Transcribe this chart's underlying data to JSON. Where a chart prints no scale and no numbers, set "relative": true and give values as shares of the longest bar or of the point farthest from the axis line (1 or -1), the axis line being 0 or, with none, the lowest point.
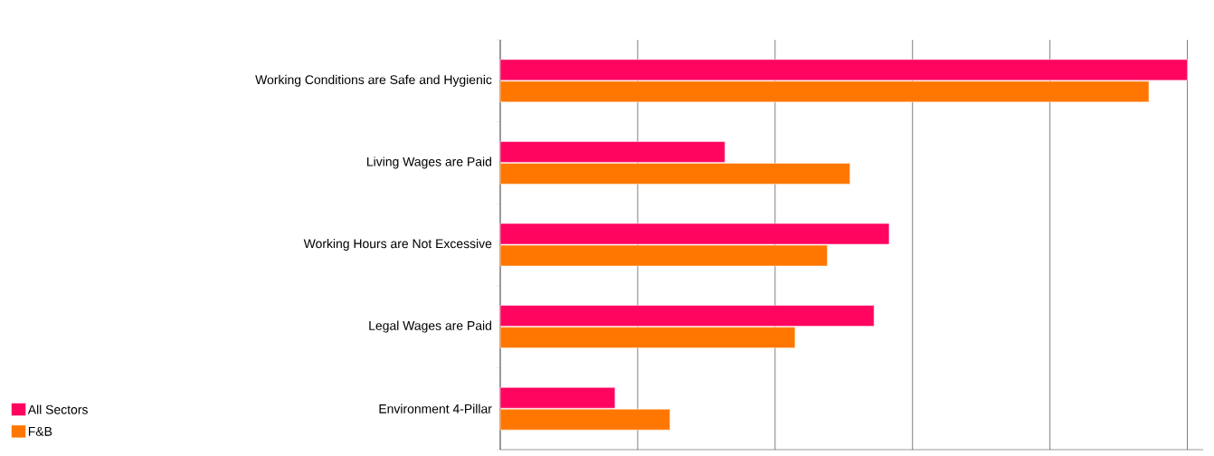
{
  "chart_data": {
    "type": "bar",
    "orientation": "horizontal",
    "relative": true,
    "grid": "x",
    "legend": "bottom left",
    "categories": [
      "Working Conditions are Safe and Hygienic",
      "Living Wages are Paid",
      "Working Hours are Not Excessive",
      "Legal Wages are Paid",
      "Environment 4-Pillar"
    ],
    "series": [
      {
        "name": "All Sectors",
        "color": "#ff0560",
        "values": [
          1,
          0.327,
          0.566,
          0.544,
          0.167
        ]
      },
      {
        "name": "F&B",
        "color": "#ff7700",
        "values": [
          0.944,
          0.509,
          0.476,
          0.429,
          0.247
        ]
      }
    ]
  }
}
